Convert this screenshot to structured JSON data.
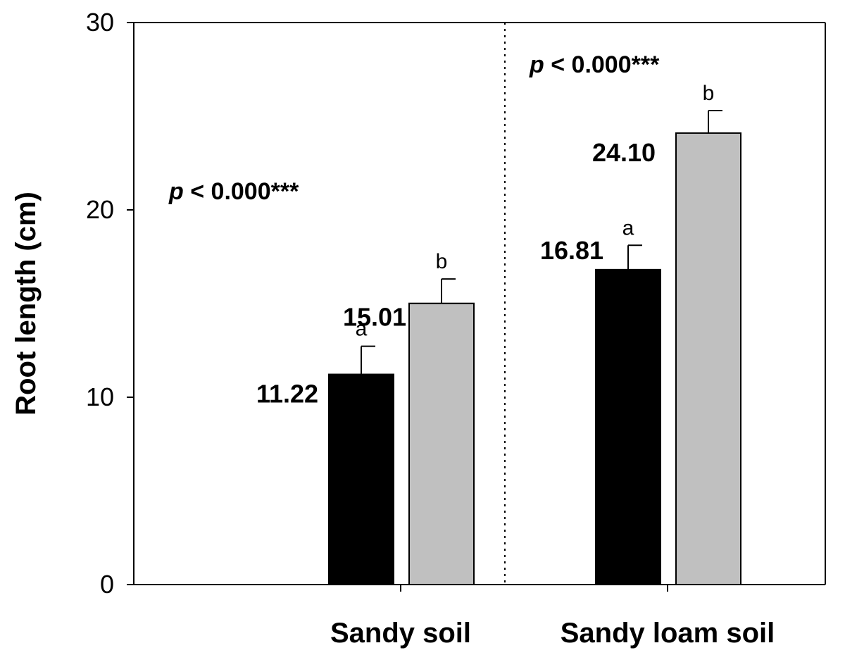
{
  "chart_data": {
    "type": "bar",
    "ylabel": "Root length (cm)",
    "ylim": [
      0,
      30
    ],
    "yticks": [
      0,
      10,
      20,
      30
    ],
    "categories": [
      "Sandy soil",
      "Sandy loam soil"
    ],
    "series": [
      {
        "color": "#000000",
        "values": [
          11.22,
          16.81
        ],
        "errors": [
          1.5,
          1.3
        ],
        "letters": [
          "a",
          "a"
        ]
      },
      {
        "color": "#c0c0c0",
        "values": [
          15.01,
          24.1
        ],
        "errors": [
          1.3,
          1.2
        ],
        "letters": [
          "b",
          "b"
        ]
      }
    ],
    "value_labels": [
      [
        "11.22",
        "16.81"
      ],
      [
        "15.01",
        "24.10"
      ]
    ],
    "annotations": [
      {
        "p_symbol": "p",
        "p_text": " < 0.000***"
      },
      {
        "p_symbol": "p",
        "p_text": " < 0.000***"
      }
    ],
    "grid": false,
    "divider": "dotted"
  }
}
